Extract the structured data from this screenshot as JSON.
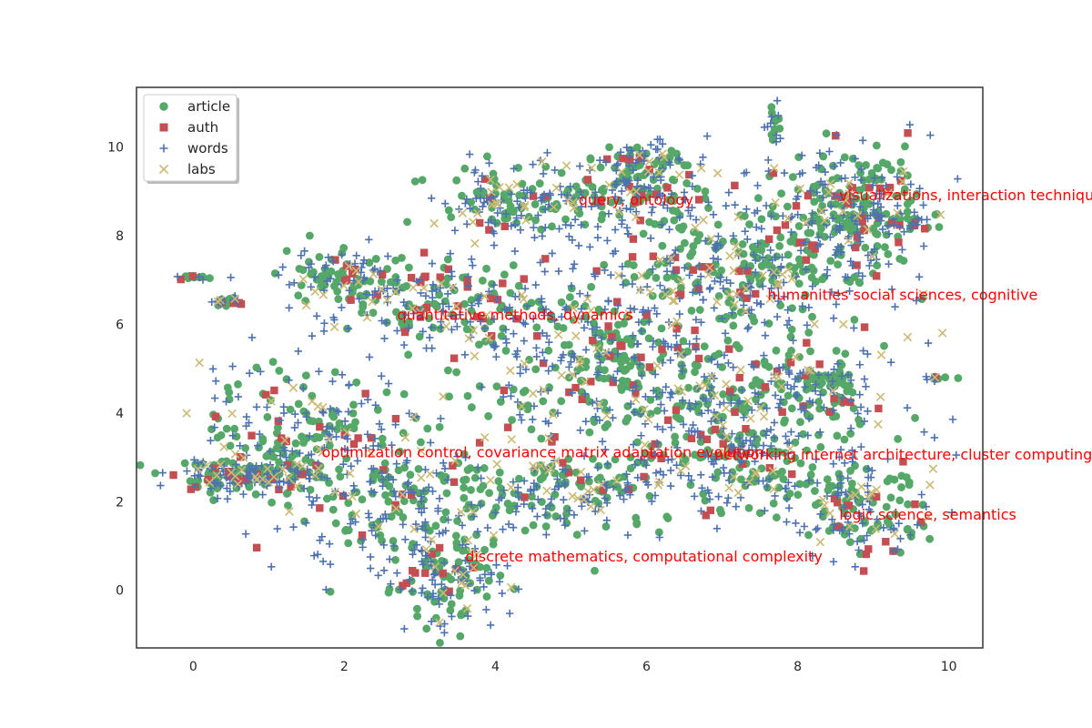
{
  "chart_data": {
    "type": "scatter",
    "title": "",
    "xlabel": "",
    "ylabel": "",
    "xlim": [
      -0.75,
      10.45
    ],
    "ylim": [
      -1.3,
      11.35
    ],
    "x_ticks": [
      0,
      2,
      4,
      6,
      8,
      10
    ],
    "y_ticks": [
      0,
      2,
      4,
      6,
      8,
      10
    ],
    "grid": false,
    "legend_position": "upper-left",
    "series": [
      {
        "name": "article",
        "color": "#55a868",
        "marker": "circle"
      },
      {
        "name": "auth",
        "color": "#c44e52",
        "marker": "square"
      },
      {
        "name": "words",
        "color": "#4c72b0",
        "marker": "plus"
      },
      {
        "name": "labs",
        "color": "#ccb974",
        "marker": "x"
      }
    ],
    "clusters": [
      {
        "x": 6.5,
        "y": 4.5,
        "sx": 1.6,
        "sy": 1.2,
        "weight": 4
      },
      {
        "x": 5.5,
        "y": 5.5,
        "sx": 1.1,
        "sy": 0.9,
        "weight": 3
      },
      {
        "x": 7.2,
        "y": 7.2,
        "sx": 1.0,
        "sy": 0.7,
        "weight": 3
      },
      {
        "x": 8.6,
        "y": 8.6,
        "sx": 0.6,
        "sy": 0.7,
        "weight": 3
      },
      {
        "x": 5.2,
        "y": 8.8,
        "sx": 0.8,
        "sy": 0.4,
        "weight": 2
      },
      {
        "x": 4.0,
        "y": 8.8,
        "sx": 0.3,
        "sy": 0.5,
        "weight": 1
      },
      {
        "x": 3.0,
        "y": 6.6,
        "sx": 0.9,
        "sy": 0.5,
        "weight": 2
      },
      {
        "x": 2.0,
        "y": 7.1,
        "sx": 0.4,
        "sy": 0.3,
        "weight": 1
      },
      {
        "x": 1.6,
        "y": 3.4,
        "sx": 0.8,
        "sy": 0.9,
        "weight": 3
      },
      {
        "x": 0.8,
        "y": 2.6,
        "sx": 0.5,
        "sy": 0.2,
        "weight": 2
      },
      {
        "x": 2.8,
        "y": 2.0,
        "sx": 0.8,
        "sy": 0.8,
        "weight": 2
      },
      {
        "x": 3.4,
        "y": 0.3,
        "sx": 0.4,
        "sy": 0.6,
        "weight": 2
      },
      {
        "x": 5.0,
        "y": 2.3,
        "sx": 0.7,
        "sy": 0.5,
        "weight": 2
      },
      {
        "x": 7.2,
        "y": 3.0,
        "sx": 0.6,
        "sy": 0.7,
        "weight": 2
      },
      {
        "x": 8.8,
        "y": 1.8,
        "sx": 0.5,
        "sy": 0.6,
        "weight": 2
      },
      {
        "x": 8.2,
        "y": 4.6,
        "sx": 0.4,
        "sy": 0.4,
        "weight": 1
      },
      {
        "x": 6.0,
        "y": 9.6,
        "sx": 0.4,
        "sy": 0.3,
        "weight": 1
      },
      {
        "x": 7.7,
        "y": 10.5,
        "sx": 0.05,
        "sy": 0.3,
        "weight": 0.2
      },
      {
        "x": 0.0,
        "y": 7.05,
        "sx": 0.12,
        "sy": 0.05,
        "weight": 0.2
      },
      {
        "x": 0.45,
        "y": 6.55,
        "sx": 0.12,
        "sy": 0.06,
        "weight": 0.2
      },
      {
        "x": 9.85,
        "y": 4.8,
        "sx": 0.06,
        "sy": 0.03,
        "weight": 0.1
      },
      {
        "x": 9.5,
        "y": 8.3,
        "sx": 0.25,
        "sy": 0.1,
        "weight": 0.3
      }
    ],
    "annotations": [
      {
        "text": "query, ontology",
        "x": 5.1,
        "y": 8.7
      },
      {
        "text": "visualizations, interaction techniques",
        "x": 8.55,
        "y": 8.8
      },
      {
        "text": "humanities social sciences, cognitive",
        "x": 7.6,
        "y": 6.55
      },
      {
        "text": "quantitative methods, dynamics",
        "x": 2.7,
        "y": 6.1
      },
      {
        "text": "optimization control, covariance matrix adaptation evolution",
        "x": 1.7,
        "y": 3.0
      },
      {
        "text": "networking internet architecture, cluster computing",
        "x": 6.9,
        "y": 2.95
      },
      {
        "text": "logic science, semantics",
        "x": 8.55,
        "y": 1.6
      },
      {
        "text": "discrete mathematics, computational complexity",
        "x": 3.6,
        "y": 0.65
      }
    ],
    "annotation_color": "#ff0000"
  }
}
